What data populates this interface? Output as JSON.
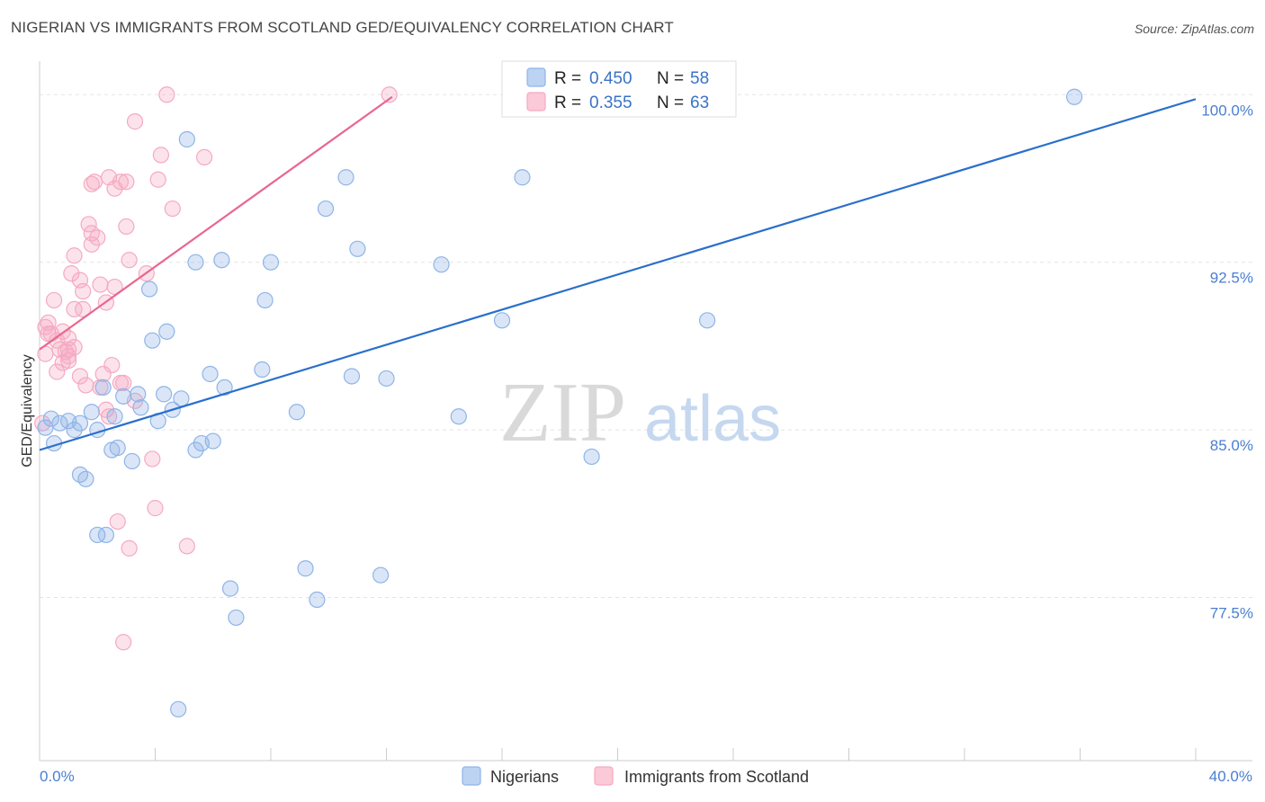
{
  "chart_data": {
    "type": "scatter",
    "title": "NIGERIAN VS IMMIGRANTS FROM SCOTLAND GED/EQUIVALENCY CORRELATION CHART",
    "source": "Source: ZipAtlas.com",
    "xlabel": "",
    "ylabel": "GED/Equivalency",
    "xlim": [
      0,
      40
    ],
    "ylim": [
      70.2,
      101.5
    ],
    "x_tick_labels": [
      "0.0%",
      "40.0%"
    ],
    "y_ticks": [
      {
        "value": 100.0,
        "label": "100.0%"
      },
      {
        "value": 92.5,
        "label": "92.5%"
      },
      {
        "value": 85.0,
        "label": "85.0%"
      },
      {
        "value": 77.5,
        "label": "77.5%"
      }
    ],
    "watermark": {
      "part1": "ZIP",
      "part2": "atlas"
    },
    "legend": {
      "r_label": "R =",
      "n_label": "N =",
      "entries": [
        {
          "r": "0.450",
          "n": "58"
        },
        {
          "r": "0.355",
          "n": "63"
        }
      ]
    },
    "series": [
      {
        "name": "Nigerians",
        "color": "#8fb4e8",
        "line_color": "#2a6fcc",
        "trend": {
          "x": [
            0,
            40
          ],
          "y": [
            84.1,
            99.8
          ]
        },
        "points": [
          [
            0.2,
            85.1
          ],
          [
            0.5,
            84.4
          ],
          [
            0.4,
            85.5
          ],
          [
            0.7,
            85.3
          ],
          [
            1.0,
            85.4
          ],
          [
            1.2,
            85.0
          ],
          [
            1.4,
            85.3
          ],
          [
            1.4,
            83.0
          ],
          [
            1.6,
            82.8
          ],
          [
            1.8,
            85.8
          ],
          [
            2.0,
            85.0
          ],
          [
            2.0,
            80.3
          ],
          [
            2.2,
            86.9
          ],
          [
            2.3,
            80.3
          ],
          [
            2.5,
            84.1
          ],
          [
            2.6,
            85.6
          ],
          [
            2.7,
            84.2
          ],
          [
            2.9,
            86.5
          ],
          [
            3.2,
            83.6
          ],
          [
            3.4,
            86.6
          ],
          [
            3.5,
            86.0
          ],
          [
            3.8,
            91.3
          ],
          [
            3.9,
            89.0
          ],
          [
            4.1,
            85.4
          ],
          [
            4.3,
            86.6
          ],
          [
            4.4,
            89.4
          ],
          [
            4.6,
            85.9
          ],
          [
            4.8,
            72.5
          ],
          [
            4.9,
            86.4
          ],
          [
            5.1,
            98.0
          ],
          [
            5.4,
            92.5
          ],
          [
            5.4,
            84.1
          ],
          [
            5.6,
            84.4
          ],
          [
            5.9,
            87.5
          ],
          [
            6.0,
            84.5
          ],
          [
            6.3,
            92.6
          ],
          [
            6.4,
            86.9
          ],
          [
            6.6,
            77.9
          ],
          [
            6.8,
            76.6
          ],
          [
            7.7,
            87.7
          ],
          [
            7.8,
            90.8
          ],
          [
            8.0,
            92.5
          ],
          [
            8.9,
            85.8
          ],
          [
            9.2,
            78.8
          ],
          [
            9.6,
            77.4
          ],
          [
            9.9,
            94.9
          ],
          [
            10.6,
            96.3
          ],
          [
            10.8,
            87.4
          ],
          [
            11.0,
            93.1
          ],
          [
            11.8,
            78.5
          ],
          [
            12.0,
            87.3
          ],
          [
            13.9,
            92.4
          ],
          [
            14.5,
            85.6
          ],
          [
            16.0,
            89.9
          ],
          [
            16.7,
            96.3
          ],
          [
            19.1,
            83.8
          ],
          [
            23.1,
            89.9
          ],
          [
            35.8,
            99.9
          ]
        ]
      },
      {
        "name": "Immigrants from Scotland",
        "color": "#f5a9c2",
        "line_color": "#e8678f",
        "trend": {
          "x": [
            0,
            12.2
          ],
          "y": [
            88.6,
            99.9
          ]
        },
        "points": [
          [
            0.1,
            85.3
          ],
          [
            0.2,
            88.4
          ],
          [
            0.2,
            89.6
          ],
          [
            0.3,
            89.3
          ],
          [
            0.3,
            89.8
          ],
          [
            0.4,
            89.3
          ],
          [
            0.5,
            90.8
          ],
          [
            0.6,
            87.6
          ],
          [
            0.6,
            89.0
          ],
          [
            0.7,
            88.6
          ],
          [
            0.8,
            88.0
          ],
          [
            0.8,
            89.4
          ],
          [
            0.9,
            88.5
          ],
          [
            1.0,
            88.3
          ],
          [
            1.0,
            89.1
          ],
          [
            1.0,
            88.1
          ],
          [
            1.0,
            88.6
          ],
          [
            1.1,
            92.0
          ],
          [
            1.2,
            90.4
          ],
          [
            1.2,
            92.8
          ],
          [
            1.2,
            88.7
          ],
          [
            1.4,
            87.4
          ],
          [
            1.4,
            91.7
          ],
          [
            1.5,
            90.4
          ],
          [
            1.5,
            91.2
          ],
          [
            1.6,
            87.0
          ],
          [
            1.7,
            94.2
          ],
          [
            1.8,
            93.8
          ],
          [
            1.8,
            96.0
          ],
          [
            1.8,
            93.3
          ],
          [
            1.9,
            96.1
          ],
          [
            2.0,
            93.6
          ],
          [
            2.1,
            91.5
          ],
          [
            2.1,
            86.9
          ],
          [
            2.2,
            87.5
          ],
          [
            2.3,
            85.9
          ],
          [
            2.3,
            90.7
          ],
          [
            2.4,
            96.3
          ],
          [
            2.4,
            85.6
          ],
          [
            2.5,
            87.9
          ],
          [
            2.6,
            95.8
          ],
          [
            2.6,
            91.4
          ],
          [
            2.7,
            80.9
          ],
          [
            2.8,
            87.1
          ],
          [
            2.8,
            96.1
          ],
          [
            2.9,
            87.1
          ],
          [
            2.9,
            75.5
          ],
          [
            3.0,
            94.1
          ],
          [
            3.1,
            79.7
          ],
          [
            3.0,
            96.1
          ],
          [
            3.1,
            92.6
          ],
          [
            3.3,
            86.3
          ],
          [
            3.3,
            98.8
          ],
          [
            3.7,
            92.0
          ],
          [
            3.9,
            83.7
          ],
          [
            4.0,
            81.5
          ],
          [
            4.1,
            96.2
          ],
          [
            4.2,
            97.3
          ],
          [
            4.4,
            100.0
          ],
          [
            4.6,
            94.9
          ],
          [
            5.1,
            79.8
          ],
          [
            5.7,
            97.2
          ],
          [
            12.1,
            100.0
          ]
        ]
      }
    ]
  }
}
